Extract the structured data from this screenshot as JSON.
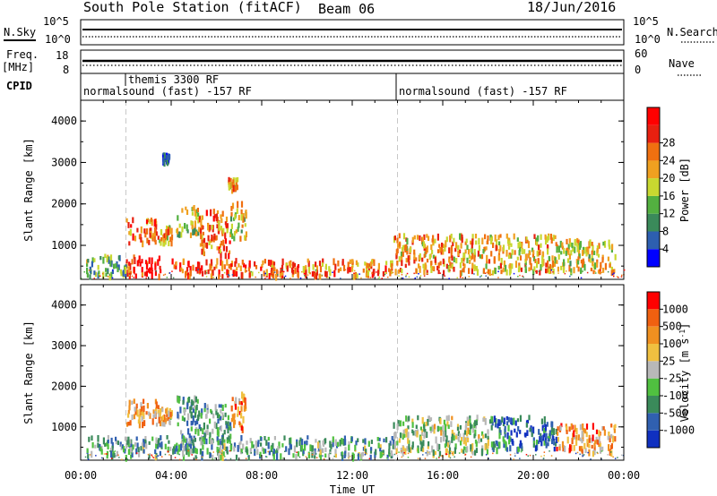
{
  "header": {
    "station": "South Pole Station (fitACF)",
    "beam": "Beam 06",
    "date": "18/Jun/2016"
  },
  "aux_panels": {
    "nsky_label": "N.Sky",
    "nsky_ticks": [
      "10^5",
      "10^0"
    ],
    "nsearch_label": "N.Search",
    "nsearch_ticks": [
      "10^5",
      "10^0"
    ],
    "freq_label": "Freq.",
    "freq_unit": "[MHz]",
    "freq_ticks": [
      "18",
      "8"
    ],
    "nave_label": "Nave",
    "nave_ticks": [
      "60",
      "0"
    ],
    "cpid_label": "CPID",
    "cpid_segments": [
      {
        "start_hour": 0,
        "label": "normalsound (fast) -157 RF"
      },
      {
        "start_hour": 2,
        "label": "themis 3300 RF"
      },
      {
        "start_hour": 14,
        "label": "normalsound (fast) -157 RF"
      }
    ]
  },
  "chart_data": [
    {
      "type": "heatmap",
      "name": "power",
      "ylabel": "Slant Range [km]",
      "xlabel": "Time UT",
      "x_tick_labels": [
        "00:00",
        "04:00",
        "08:00",
        "12:00",
        "16:00",
        "20:00",
        "00:00"
      ],
      "xlim_hours": [
        0,
        24
      ],
      "ylim_km": [
        180,
        4500
      ],
      "y_ticks": [
        "1000",
        "2000",
        "3000",
        "4000"
      ],
      "colorbar": {
        "label": "Power [dB]",
        "ticks": [
          "4",
          "8",
          "12",
          "16",
          "20",
          "24",
          "28"
        ],
        "colors": [
          "#0000ff",
          "#2d5fb0",
          "#3a8a5a",
          "#53b040",
          "#c8d830",
          "#f0a020",
          "#f07010",
          "#e82010",
          "#ff0000"
        ]
      },
      "clusters": [
        {
          "t0": 2.0,
          "t1": 3.4,
          "r0": 1100,
          "r1": 1700,
          "level": 0.75
        },
        {
          "t0": 3.4,
          "t1": 4.0,
          "r0": 1100,
          "r1": 1500,
          "level": 0.6
        },
        {
          "t0": 4.2,
          "t1": 5.2,
          "r0": 1300,
          "r1": 2000,
          "level": 0.5
        },
        {
          "t0": 5.2,
          "t1": 6.6,
          "r0": 800,
          "r1": 1900,
          "level": 0.7
        },
        {
          "t0": 6.6,
          "t1": 7.3,
          "r0": 1200,
          "r1": 2100,
          "level": 0.55
        },
        {
          "t0": 2.0,
          "t1": 3.5,
          "r0": 300,
          "r1": 800,
          "level": 0.85
        },
        {
          "t0": 4.0,
          "t1": 7.5,
          "r0": 300,
          "r1": 700,
          "level": 0.8
        },
        {
          "t0": 7.5,
          "t1": 13.8,
          "r0": 300,
          "r1": 700,
          "level": 0.7
        },
        {
          "t0": 0.2,
          "t1": 2.0,
          "r0": 300,
          "r1": 800,
          "level": 0.35
        },
        {
          "t0": 13.8,
          "t1": 17.0,
          "r0": 400,
          "r1": 1300,
          "level": 0.65
        },
        {
          "t0": 17.0,
          "t1": 21.0,
          "r0": 400,
          "r1": 1300,
          "level": 0.6
        },
        {
          "t0": 21.0,
          "t1": 23.6,
          "r0": 400,
          "r1": 1200,
          "level": 0.55
        },
        {
          "t0": 3.6,
          "t1": 3.9,
          "r0": 3050,
          "r1": 3250,
          "level": 0.15
        },
        {
          "t0": 6.5,
          "t1": 6.9,
          "r0": 2350,
          "r1": 2650,
          "level": 0.6
        }
      ]
    },
    {
      "type": "heatmap",
      "name": "velocity",
      "ylabel": "Slant Range [km]",
      "xlabel": "Time UT",
      "x_tick_labels": [
        "00:00",
        "04:00",
        "08:00",
        "12:00",
        "16:00",
        "20:00",
        "00:00"
      ],
      "xlim_hours": [
        0,
        24
      ],
      "ylim_km": [
        180,
        4500
      ],
      "y_ticks": [
        "1000",
        "2000",
        "3000",
        "4000"
      ],
      "colorbar": {
        "label": "Velocity [m s",
        "label_sup": "-1",
        "label_end": "]",
        "ticks": [
          "1000",
          "500",
          "100",
          "25",
          "-25",
          "-100",
          "-500",
          "-1000"
        ],
        "colors": [
          "#1030c0",
          "#3060b0",
          "#3a8a5a",
          "#50c040",
          "#b8b8b8",
          "#f0c040",
          "#f09020",
          "#f06010",
          "#ff0000"
        ]
      },
      "clusters": [
        {
          "t0": 2.0,
          "t1": 3.4,
          "r0": 1100,
          "r1": 1700,
          "level": 0.7
        },
        {
          "t0": 3.4,
          "t1": 4.0,
          "r0": 1100,
          "r1": 1500,
          "level": 0.65
        },
        {
          "t0": 4.2,
          "t1": 5.2,
          "r0": 700,
          "r1": 1800,
          "level": 0.3
        },
        {
          "t0": 5.2,
          "t1": 6.6,
          "r0": 700,
          "r1": 1600,
          "level": 0.35
        },
        {
          "t0": 6.6,
          "t1": 7.3,
          "r0": 1000,
          "r1": 1900,
          "level": 0.75
        },
        {
          "t0": 0.2,
          "t1": 13.8,
          "r0": 300,
          "r1": 800,
          "level": 0.35
        },
        {
          "t0": 13.8,
          "t1": 18.0,
          "r0": 400,
          "r1": 1300,
          "level": 0.45
        },
        {
          "t0": 18.0,
          "t1": 21.0,
          "r0": 500,
          "r1": 1300,
          "level": 0.2
        },
        {
          "t0": 21.0,
          "t1": 23.6,
          "r0": 400,
          "r1": 1100,
          "level": 0.7
        }
      ]
    }
  ]
}
